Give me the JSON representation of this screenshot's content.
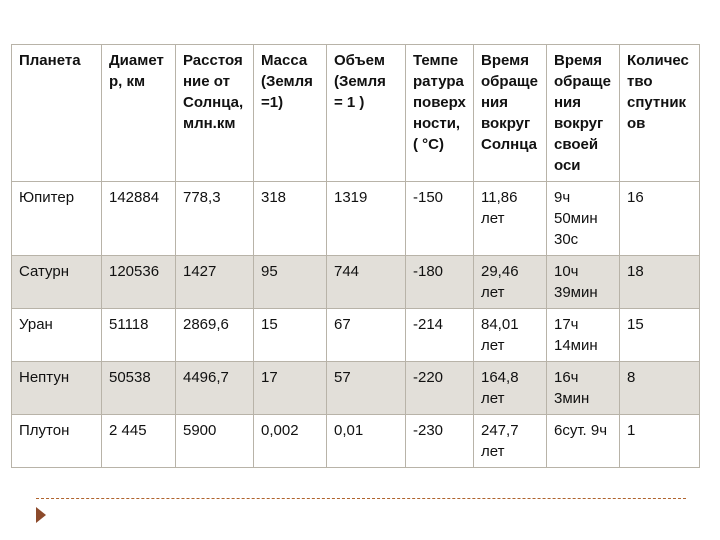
{
  "table": {
    "headers": [
      "Планета",
      "Диаметр, км",
      "Расстояние от Солнца, млн.км",
      "Масса (Земля =1)",
      "Объем (Земля = 1 )",
      "Температура поверхности, ( °С)",
      "Время обращения вокруг Солнца",
      "Время обращения вокруг своей оси",
      "Количество спутников"
    ],
    "rows": [
      [
        "Юпитер",
        "142884",
        "778,3",
        "318",
        "1319",
        "-150",
        "11,86 лет",
        "9ч 50мин 30с",
        "16"
      ],
      [
        "Сатурн",
        "120536",
        "1427",
        "95",
        "744",
        "-180",
        "29,46 лет",
        "10ч 39мин",
        "18"
      ],
      [
        "Уран",
        "51118",
        "2869,6",
        "15",
        "67",
        "-214",
        "84,01 лет",
        "17ч 14мин",
        "15"
      ],
      [
        "Нептун",
        "50538",
        "4496,7",
        "17",
        "57",
        "-220",
        "164,8 лет",
        "16ч 3мин",
        "8"
      ],
      [
        "Плутон",
        "2 445",
        "5900",
        "0,002",
        "0,01",
        "-230",
        "247,7 лет",
        "6сут. 9ч",
        "1"
      ]
    ]
  }
}
